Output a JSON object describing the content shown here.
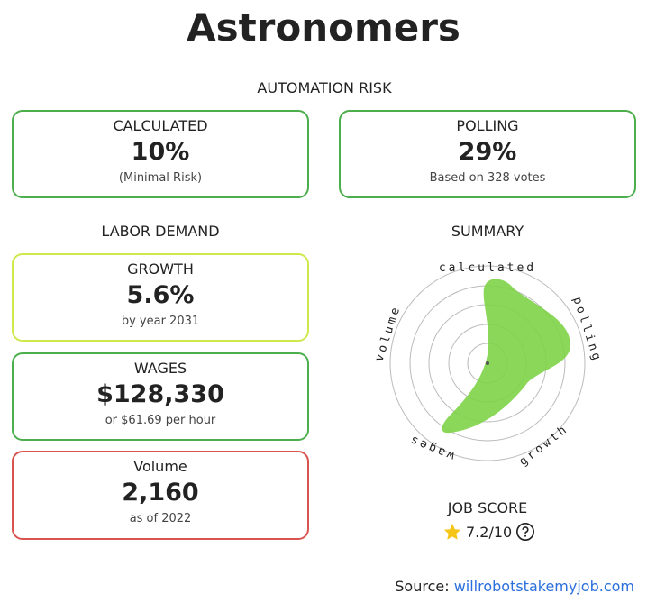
{
  "title": "Astronomers",
  "automation_risk": {
    "heading": "AUTOMATION RISK",
    "calculated": {
      "label": "CALCULATED",
      "value": "10%",
      "note": "(Minimal Risk)"
    },
    "polling": {
      "label": "POLLING",
      "value": "29%",
      "note": "Based on 328 votes"
    }
  },
  "labor_demand": {
    "heading": "LABOR DEMAND",
    "growth": {
      "label": "GROWTH",
      "value": "5.6%",
      "note": "by year 2031"
    },
    "wages": {
      "label": "WAGES",
      "value": "$128,330",
      "note": "or $61.69 per hour"
    },
    "volume": {
      "label": "Volume",
      "value": "2,160",
      "note": "as of 2022"
    }
  },
  "summary": {
    "heading": "SUMMARY",
    "axes": [
      "calculated",
      "polling",
      "growth",
      "wages",
      "volume"
    ]
  },
  "job_score": {
    "heading": "JOB SCORE",
    "value": "7.2/10"
  },
  "source": {
    "label": "Source:",
    "link": "willrobotstakemyjob.com"
  }
}
